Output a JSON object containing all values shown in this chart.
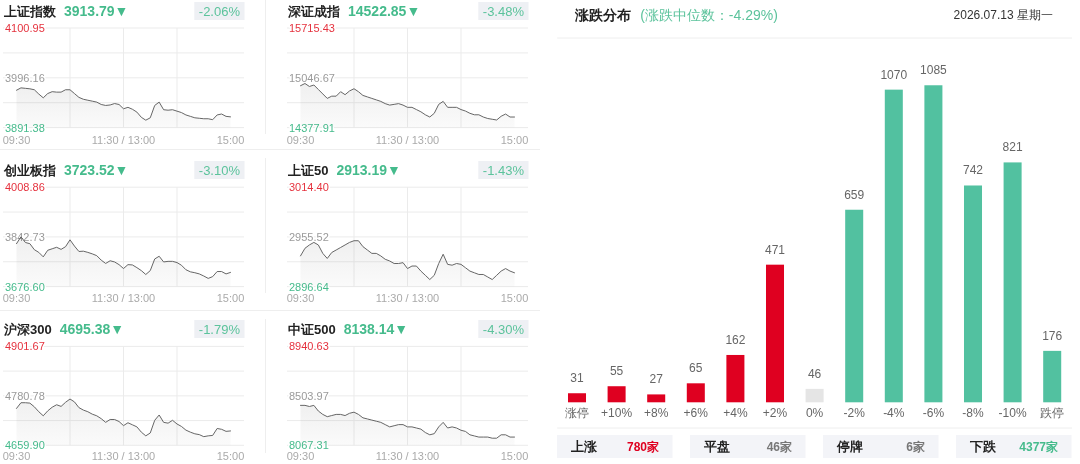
{
  "chart_data": [
    {
      "type": "area",
      "title": "上证指数",
      "subtitle": "3913.79▼",
      "annotations": [
        "-2.06%"
      ],
      "color": "#666666",
      "grid": true,
      "categories": [
        "09:30",
        null,
        null,
        null,
        null,
        null,
        null,
        null,
        null,
        null,
        null,
        null,
        null,
        null,
        null,
        null,
        null,
        null,
        null,
        null,
        null,
        null,
        null,
        null,
        "11:30 / 13:00",
        null,
        null,
        null,
        null,
        null,
        null,
        null,
        null,
        null,
        null,
        null,
        null,
        null,
        null,
        null,
        null,
        null,
        null,
        null,
        null,
        null,
        null,
        null,
        "15:00"
      ],
      "values": [
        3970,
        3975,
        3974,
        3973,
        3971,
        3962,
        3954,
        3963,
        3967,
        3966,
        3966,
        3971,
        3971,
        3963,
        3955,
        3951,
        3949,
        3947,
        3945,
        3940,
        3938,
        3939,
        3942,
        3940,
        3931,
        3934,
        3930,
        3924,
        3913,
        3907,
        3912,
        3938,
        3945,
        3929,
        3928,
        3929,
        3926,
        3923,
        3918,
        3915,
        3912,
        3911,
        3910,
        3910,
        3908,
        3918,
        3920,
        3915,
        3914
      ],
      "ylim": [
        3891.38,
        4100.95
      ],
      "yticks": [
        3891.38,
        {
          "value": 3943.77,
          "label": null
        },
        3996.16,
        {
          "value": 4048.56,
          "label": null
        },
        4100.95
      ]
    },
    {
      "type": "area",
      "title": "深证成指",
      "subtitle": "14522.85▼",
      "annotations": [
        "-3.48%"
      ],
      "color": "#666666",
      "grid": true,
      "categories": [
        "09:30",
        null,
        null,
        null,
        null,
        null,
        null,
        null,
        null,
        null,
        null,
        null,
        null,
        null,
        null,
        null,
        null,
        null,
        null,
        null,
        null,
        null,
        null,
        null,
        "11:30 / 13:00",
        null,
        null,
        null,
        null,
        null,
        null,
        null,
        null,
        null,
        null,
        null,
        null,
        null,
        null,
        null,
        null,
        null,
        null,
        null,
        null,
        null,
        null,
        null,
        "15:00"
      ],
      "values": [
        14940,
        14970,
        14930,
        14950,
        14890,
        14830,
        14770,
        14800,
        14800,
        14860,
        14820,
        14870,
        14900,
        14860,
        14810,
        14790,
        14770,
        14750,
        14730,
        14700,
        14680,
        14690,
        14700,
        14680,
        14650,
        14650,
        14620,
        14590,
        14550,
        14520,
        14570,
        14690,
        14730,
        14650,
        14650,
        14650,
        14620,
        14600,
        14570,
        14550,
        14550,
        14520,
        14500,
        14490,
        14480,
        14530,
        14560,
        14520,
        14520
      ],
      "ylim": [
        14377.91,
        15715.43
      ],
      "yticks": [
        14377.91,
        {
          "value": 14712.29,
          "label": null
        },
        15046.67,
        {
          "value": 15381.05,
          "label": null
        },
        15715.43
      ]
    },
    {
      "type": "area",
      "title": "创业板指",
      "subtitle": "3723.52▼",
      "annotations": [
        "-3.10%"
      ],
      "color": "#666666",
      "grid": true,
      "categories": [
        "09:30",
        null,
        null,
        null,
        null,
        null,
        null,
        null,
        null,
        null,
        null,
        null,
        null,
        null,
        null,
        null,
        null,
        null,
        null,
        null,
        null,
        null,
        null,
        null,
        "11:30 / 13:00",
        null,
        null,
        null,
        null,
        null,
        null,
        null,
        null,
        null,
        null,
        null,
        null,
        null,
        null,
        null,
        null,
        null,
        null,
        null,
        null,
        null,
        null,
        null,
        "15:00"
      ],
      "values": [
        3820,
        3843,
        3824,
        3820,
        3800,
        3791,
        3776,
        3798,
        3803,
        3808,
        3801,
        3810,
        3833,
        3812,
        3794,
        3795,
        3791,
        3786,
        3780,
        3765,
        3754,
        3763,
        3759,
        3750,
        3737,
        3750,
        3749,
        3740,
        3730,
        3717,
        3730,
        3769,
        3778,
        3759,
        3761,
        3761,
        3757,
        3748,
        3733,
        3726,
        3723,
        3719,
        3712,
        3704,
        3710,
        3727,
        3727,
        3719,
        3724
      ],
      "ylim": [
        3676.6,
        4008.86
      ],
      "yticks": [
        {
          "value": 3676.6,
          "label": "3676.60"
        },
        {
          "value": 3759.67,
          "label": null
        },
        3842.73,
        {
          "value": 3925.8,
          "label": null
        },
        4008.86
      ]
    },
    {
      "type": "area",
      "title": "上证50",
      "subtitle": "2913.19▼",
      "annotations": [
        "-1.43%"
      ],
      "color": "#666666",
      "grid": true,
      "categories": [
        "09:30",
        null,
        null,
        null,
        null,
        null,
        null,
        null,
        null,
        null,
        null,
        null,
        null,
        null,
        null,
        null,
        null,
        null,
        null,
        null,
        null,
        null,
        null,
        null,
        "11:30 / 13:00",
        null,
        null,
        null,
        null,
        null,
        null,
        null,
        null,
        null,
        null,
        null,
        null,
        null,
        null,
        null,
        null,
        null,
        null,
        null,
        null,
        null,
        null,
        null,
        "15:00"
      ],
      "values": [
        2933,
        2942,
        2946,
        2949,
        2946,
        2936,
        2930,
        2937,
        2940,
        2943,
        2946,
        2949,
        2951,
        2951,
        2944,
        2940,
        2936,
        2936,
        2933,
        2929,
        2927,
        2924,
        2924,
        2925,
        2918,
        2921,
        2921,
        2915,
        2910,
        2905,
        2910,
        2924,
        2935,
        2923,
        2922,
        2924,
        2923,
        2919,
        2915,
        2913,
        2911,
        2911,
        2908,
        2905,
        2910,
        2915,
        2918,
        2915,
        2913
      ],
      "ylim": [
        2896.64,
        3014.4
      ],
      "yticks": [
        2896.64,
        {
          "value": 2926.08,
          "label": null
        },
        2955.52,
        {
          "value": 2984.96,
          "label": null
        },
        {
          "value": 3014.4,
          "label": "3014.40"
        }
      ]
    },
    {
      "type": "area",
      "title": "沪深300",
      "subtitle": "4695.38▼",
      "annotations": [
        "-1.79%"
      ],
      "color": "#666666",
      "grid": true,
      "categories": [
        "09:30",
        null,
        null,
        null,
        null,
        null,
        null,
        null,
        null,
        null,
        null,
        null,
        null,
        null,
        null,
        null,
        null,
        null,
        null,
        null,
        null,
        null,
        null,
        null,
        "11:30 / 13:00",
        null,
        null,
        null,
        null,
        null,
        null,
        null,
        null,
        null,
        null,
        null,
        null,
        null,
        null,
        null,
        null,
        null,
        null,
        null,
        null,
        null,
        null,
        null,
        "15:00"
      ],
      "values": [
        4750,
        4764,
        4764,
        4763,
        4754,
        4742,
        4732,
        4744,
        4753,
        4759,
        4755,
        4765,
        4773,
        4766,
        4752,
        4746,
        4742,
        4736,
        4732,
        4725,
        4716,
        4723,
        4723,
        4718,
        4708,
        4715,
        4710,
        4705,
        4692,
        4683,
        4690,
        4721,
        4734,
        4716,
        4714,
        4721,
        4712,
        4706,
        4697,
        4692,
        4688,
        4686,
        4681,
        4683,
        4684,
        4701,
        4699,
        4694,
        4695
      ],
      "ylim": [
        4659.9,
        4901.67
      ],
      "yticks": [
        {
          "value": 4659.9,
          "label": "4659.90"
        },
        {
          "value": 4720.34,
          "label": null
        },
        4780.78,
        {
          "value": 4841.23,
          "label": null
        },
        4901.67
      ]
    },
    {
      "type": "area",
      "title": "中证500",
      "subtitle": "8138.14▼",
      "annotations": [
        "-4.30%"
      ],
      "color": "#666666",
      "grid": true,
      "categories": [
        "09:30",
        null,
        null,
        null,
        null,
        null,
        null,
        null,
        null,
        null,
        null,
        null,
        null,
        null,
        null,
        null,
        null,
        null,
        null,
        null,
        null,
        null,
        null,
        null,
        "11:30 / 13:00",
        null,
        null,
        null,
        null,
        null,
        null,
        null,
        null,
        null,
        null,
        null,
        null,
        null,
        null,
        null,
        null,
        null,
        null,
        null,
        null,
        null,
        null,
        null,
        "15:00"
      ],
      "values": [
        8420,
        8420,
        8410,
        8420,
        8370,
        8340,
        8320,
        8330,
        8340,
        8340,
        8330,
        8350,
        8360,
        8340,
        8310,
        8300,
        8290,
        8280,
        8270,
        8250,
        8230,
        8240,
        8250,
        8250,
        8230,
        8230,
        8220,
        8210,
        8180,
        8160,
        8170,
        8230,
        8270,
        8220,
        8230,
        8220,
        8200,
        8190,
        8160,
        8150,
        8140,
        8140,
        8140,
        8130,
        8130,
        8160,
        8160,
        8140,
        8140
      ],
      "ylim": [
        8067.31,
        8940.63
      ],
      "yticks": [
        8067.31,
        {
          "value": 8285.64,
          "label": null
        },
        8503.97,
        {
          "value": 8722.3,
          "label": null
        },
        8940.63
      ]
    },
    {
      "type": "bar",
      "title": "涨跌分布",
      "subtitle": "(涨跌中位数：-4.29%)",
      "annotations": [
        "2026.07.13 星期一"
      ],
      "categories": [
        "涨停",
        "+10%",
        "+8%",
        "+6%",
        "+4%",
        "+2%",
        "0%",
        "-2%",
        "-4%",
        "-6%",
        "-8%",
        "-10%",
        "跌停"
      ],
      "values": [
        31,
        55,
        27,
        65,
        162,
        471,
        46,
        659,
        1070,
        1085,
        742,
        821,
        176
      ],
      "colors": [
        "#df0020",
        "#df0020",
        "#df0020",
        "#df0020",
        "#df0020",
        "#df0020",
        "#e5e5e5",
        "#52c1a0",
        "#52c1a0",
        "#52c1a0",
        "#52c1a0",
        "#52c1a0",
        "#52c1a0"
      ],
      "data_labels": true,
      "tick_labels": "x"
    },
    {
      "type": "other",
      "annotations": [
        "上涨",
        "780家",
        "平盘",
        "46家",
        "停牌",
        "6家",
        "下跌",
        "4377家"
      ]
    }
  ]
}
